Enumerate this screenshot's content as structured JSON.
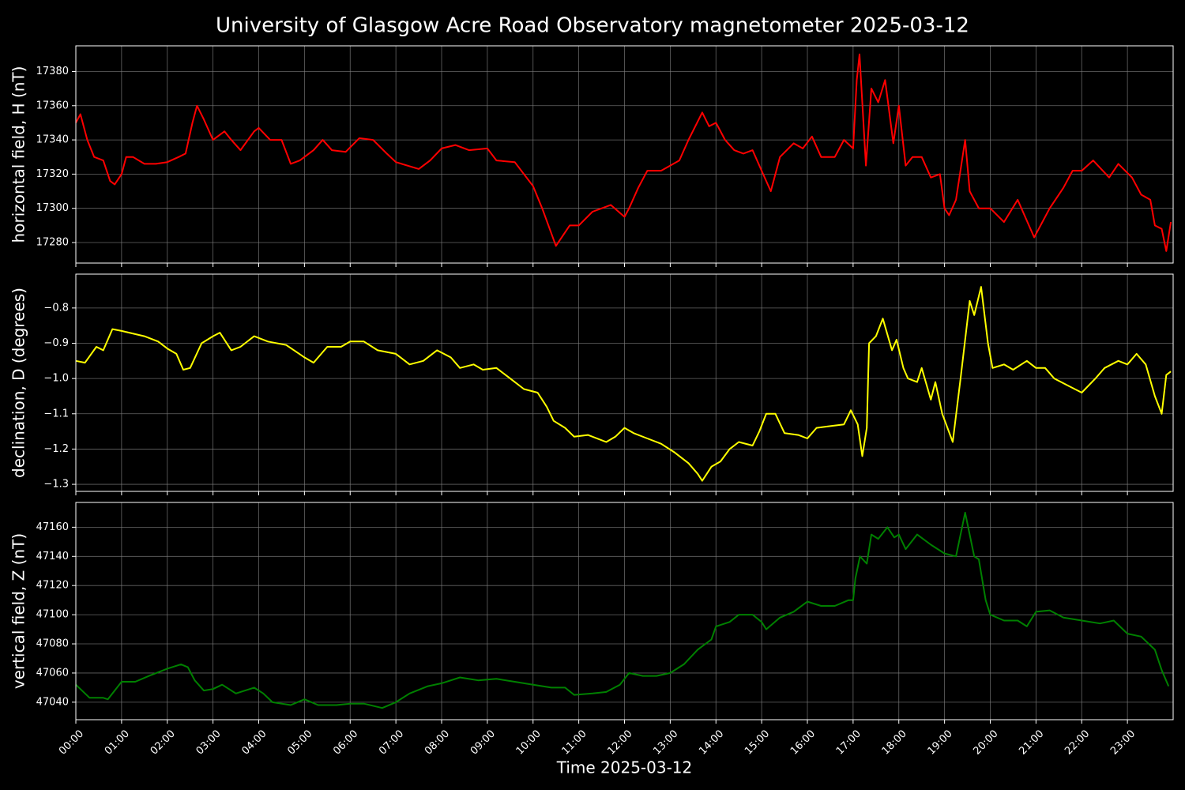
{
  "chart_data": [
    {
      "type": "line",
      "title": "University of Glasgow Acre Road Observatory magnetometer 2025-03-12",
      "ylabel": "horizontal field, H (nT)",
      "color": "#ff0000",
      "grid": true,
      "xlim": [
        0,
        24
      ],
      "xticks": [
        0,
        1,
        2,
        3,
        4,
        5,
        6,
        7,
        8,
        9,
        10,
        11,
        12,
        13,
        14,
        15,
        16,
        17,
        18,
        19,
        20,
        21,
        22,
        23
      ],
      "ylim": [
        17268,
        17395
      ],
      "yticks": [
        17280,
        17300,
        17320,
        17340,
        17360,
        17380
      ],
      "x": [
        0,
        0.1,
        0.25,
        0.4,
        0.6,
        0.75,
        0.85,
        1.0,
        1.1,
        1.25,
        1.5,
        1.75,
        2.0,
        2.25,
        2.4,
        2.55,
        2.65,
        2.8,
        3.0,
        3.25,
        3.4,
        3.6,
        3.9,
        4.0,
        4.25,
        4.5,
        4.7,
        4.9,
        5.2,
        5.4,
        5.6,
        5.9,
        6.2,
        6.5,
        6.8,
        7.0,
        7.5,
        7.75,
        8.0,
        8.3,
        8.6,
        9.0,
        9.2,
        9.6,
        10.0,
        10.2,
        10.5,
        10.8,
        11.0,
        11.3,
        11.7,
        12.0,
        12.1,
        12.3,
        12.5,
        12.8,
        13.0,
        13.2,
        13.4,
        13.7,
        13.85,
        14.0,
        14.2,
        14.4,
        14.6,
        14.8,
        15.0,
        15.2,
        15.4,
        15.7,
        15.9,
        16.1,
        16.3,
        16.6,
        16.8,
        17.0,
        17.08,
        17.14,
        17.28,
        17.4,
        17.55,
        17.7,
        17.88,
        18.0,
        18.15,
        18.3,
        18.5,
        18.7,
        18.9,
        19.0,
        19.1,
        19.25,
        19.45,
        19.55,
        19.75,
        20.0,
        20.3,
        20.6,
        20.96,
        21.3,
        21.6,
        21.8,
        22.0,
        22.25,
        22.6,
        22.8,
        23.1,
        23.3,
        23.5,
        23.6,
        23.75,
        23.85,
        23.95
      ],
      "values": [
        17350,
        17355,
        17340,
        17330,
        17328,
        17316,
        17314,
        17320,
        17330,
        17330,
        17326,
        17326,
        17327,
        17330,
        17332,
        17350,
        17360,
        17352,
        17340,
        17345,
        17340,
        17334,
        17345,
        17347,
        17340,
        17340,
        17326,
        17328,
        17334,
        17340,
        17334,
        17333,
        17341,
        17340,
        17332,
        17327,
        17323,
        17328,
        17335,
        17337,
        17334,
        17335,
        17328,
        17327,
        17313,
        17300,
        17278,
        17290,
        17290,
        17298,
        17302,
        17295,
        17300,
        17312,
        17322,
        17322,
        17325,
        17328,
        17340,
        17356,
        17348,
        17350,
        17340,
        17334,
        17332,
        17334,
        17322,
        17310,
        17330,
        17338,
        17335,
        17342,
        17330,
        17330,
        17340,
        17335,
        17375,
        17390,
        17325,
        17370,
        17362,
        17375,
        17338,
        17360,
        17325,
        17330,
        17330,
        17318,
        17320,
        17300,
        17296,
        17305,
        17340,
        17310,
        17300,
        17300,
        17292,
        17305,
        17283,
        17300,
        17312,
        17322,
        17322,
        17328,
        17318,
        17326,
        17318,
        17308,
        17305,
        17290,
        17288,
        17275,
        17292
      ]
    },
    {
      "type": "line",
      "ylabel": "declination, D (degrees)",
      "color": "#ffff00",
      "grid": true,
      "xlim": [
        0,
        24
      ],
      "xticks": [
        0,
        1,
        2,
        3,
        4,
        5,
        6,
        7,
        8,
        9,
        10,
        11,
        12,
        13,
        14,
        15,
        16,
        17,
        18,
        19,
        20,
        21,
        22,
        23
      ],
      "ylim": [
        -1.32,
        -0.704
      ],
      "yticks": [
        {
          "value": -1.3,
          "label": "−1.3"
        },
        {
          "value": -1.2,
          "label": "−1.2"
        },
        {
          "value": -1.1,
          "label": "−1.1"
        },
        {
          "value": -1.0,
          "label": "−1.0"
        },
        {
          "value": -0.9,
          "label": "−0.9"
        },
        {
          "value": -0.8,
          "label": "−0.8"
        }
      ],
      "x": [
        0,
        0.2,
        0.45,
        0.6,
        0.8,
        1.0,
        1.5,
        1.8,
        2.0,
        2.2,
        2.35,
        2.5,
        2.75,
        3.0,
        3.15,
        3.4,
        3.6,
        3.9,
        4.2,
        4.6,
        5.0,
        5.2,
        5.5,
        5.8,
        6.0,
        6.3,
        6.6,
        7.0,
        7.3,
        7.6,
        7.9,
        8.2,
        8.4,
        8.7,
        8.9,
        9.2,
        9.5,
        9.8,
        10.1,
        10.3,
        10.45,
        10.7,
        10.9,
        11.2,
        11.6,
        11.8,
        12.0,
        12.2,
        12.5,
        12.8,
        13.1,
        13.4,
        13.6,
        13.7,
        13.9,
        14.1,
        14.3,
        14.5,
        14.8,
        14.95,
        15.1,
        15.3,
        15.5,
        15.8,
        16.0,
        16.2,
        16.5,
        16.8,
        16.95,
        17.1,
        17.2,
        17.3,
        17.35,
        17.5,
        17.65,
        17.85,
        17.95,
        18.1,
        18.2,
        18.4,
        18.5,
        18.7,
        18.8,
        18.95,
        19.18,
        19.35,
        19.55,
        19.65,
        19.8,
        19.95,
        20.05,
        20.3,
        20.5,
        20.8,
        21.0,
        21.2,
        21.4,
        21.7,
        22.0,
        22.3,
        22.5,
        22.8,
        23.0,
        23.2,
        23.4,
        23.6,
        23.75,
        23.85,
        23.95
      ],
      "values": [
        -0.95,
        -0.955,
        -0.91,
        -0.92,
        -0.86,
        -0.865,
        -0.88,
        -0.895,
        -0.915,
        -0.93,
        -0.975,
        -0.97,
        -0.9,
        -0.88,
        -0.87,
        -0.92,
        -0.91,
        -0.88,
        -0.895,
        -0.905,
        -0.94,
        -0.955,
        -0.91,
        -0.91,
        -0.895,
        -0.895,
        -0.92,
        -0.93,
        -0.96,
        -0.95,
        -0.92,
        -0.94,
        -0.97,
        -0.96,
        -0.975,
        -0.97,
        -1.0,
        -1.03,
        -1.04,
        -1.08,
        -1.12,
        -1.14,
        -1.165,
        -1.16,
        -1.18,
        -1.165,
        -1.14,
        -1.155,
        -1.17,
        -1.185,
        -1.21,
        -1.24,
        -1.27,
        -1.29,
        -1.25,
        -1.235,
        -1.2,
        -1.18,
        -1.19,
        -1.15,
        -1.1,
        -1.1,
        -1.155,
        -1.16,
        -1.17,
        -1.14,
        -1.135,
        -1.13,
        -1.09,
        -1.13,
        -1.22,
        -1.14,
        -0.9,
        -0.88,
        -0.83,
        -0.92,
        -0.89,
        -0.97,
        -1.0,
        -1.01,
        -0.97,
        -1.06,
        -1.01,
        -1.1,
        -1.18,
        -1.0,
        -0.78,
        -0.82,
        -0.74,
        -0.9,
        -0.97,
        -0.96,
        -0.975,
        -0.95,
        -0.97,
        -0.97,
        -1.0,
        -1.02,
        -1.04,
        -1.0,
        -0.97,
        -0.95,
        -0.96,
        -0.93,
        -0.96,
        -1.05,
        -1.1,
        -0.99,
        -0.98
      ]
    },
    {
      "type": "line",
      "ylabel": "vertical field, Z (nT)",
      "xlabel": "Time 2025-03-12",
      "color": "#008000",
      "grid": true,
      "xlim": [
        0,
        24
      ],
      "xticks": [
        {
          "value": 0,
          "label": "00:00"
        },
        {
          "value": 1,
          "label": "01:00"
        },
        {
          "value": 2,
          "label": "02:00"
        },
        {
          "value": 3,
          "label": "03:00"
        },
        {
          "value": 4,
          "label": "04:00"
        },
        {
          "value": 5,
          "label": "05:00"
        },
        {
          "value": 6,
          "label": "06:00"
        },
        {
          "value": 7,
          "label": "07:00"
        },
        {
          "value": 8,
          "label": "08:00"
        },
        {
          "value": 9,
          "label": "09:00"
        },
        {
          "value": 10,
          "label": "10:00"
        },
        {
          "value": 11,
          "label": "11:00"
        },
        {
          "value": 12,
          "label": "12:00"
        },
        {
          "value": 13,
          "label": "13:00"
        },
        {
          "value": 14,
          "label": "14:00"
        },
        {
          "value": 15,
          "label": "15:00"
        },
        {
          "value": 16,
          "label": "16:00"
        },
        {
          "value": 17,
          "label": "17:00"
        },
        {
          "value": 18,
          "label": "18:00"
        },
        {
          "value": 19,
          "label": "19:00"
        },
        {
          "value": 20,
          "label": "20:00"
        },
        {
          "value": 21,
          "label": "21:00"
        },
        {
          "value": 22,
          "label": "22:00"
        },
        {
          "value": 23,
          "label": "23:00"
        }
      ],
      "ylim": [
        47028,
        47177
      ],
      "yticks": [
        47040,
        47060,
        47080,
        47100,
        47120,
        47140,
        47160
      ],
      "x": [
        0,
        0.3,
        0.6,
        0.7,
        1.0,
        1.3,
        1.6,
        2.0,
        2.3,
        2.45,
        2.6,
        2.8,
        3.0,
        3.2,
        3.5,
        3.9,
        4.1,
        4.3,
        4.7,
        5.0,
        5.3,
        5.7,
        6.0,
        6.3,
        6.7,
        7.0,
        7.3,
        7.7,
        8.0,
        8.4,
        8.8,
        9.2,
        9.6,
        10.0,
        10.4,
        10.7,
        10.9,
        11.3,
        11.6,
        11.9,
        12.1,
        12.4,
        12.7,
        13.0,
        13.3,
        13.6,
        13.9,
        14.0,
        14.3,
        14.5,
        14.8,
        15.0,
        15.1,
        15.4,
        15.7,
        16.0,
        16.3,
        16.6,
        16.9,
        17.0,
        17.05,
        17.15,
        17.3,
        17.4,
        17.55,
        17.75,
        17.9,
        18.0,
        18.15,
        18.4,
        18.7,
        19.0,
        19.25,
        19.45,
        19.65,
        19.75,
        19.9,
        20.0,
        20.3,
        20.6,
        20.8,
        21.0,
        21.3,
        21.6,
        22.0,
        22.4,
        22.7,
        23.0,
        23.3,
        23.6,
        23.75,
        23.9
      ],
      "values": [
        47052,
        47043,
        47043,
        47042,
        47054,
        47054,
        47058,
        47063,
        47066,
        47064,
        47055,
        47048,
        47049,
        47052,
        47046,
        47050,
        47046,
        47040,
        47038,
        47042,
        47038,
        47038,
        47039,
        47039,
        47036,
        47040,
        47046,
        47051,
        47053,
        47057,
        47055,
        47056,
        47054,
        47052,
        47050,
        47050,
        47045,
        47046,
        47047,
        47052,
        47060,
        47058,
        47058,
        47060,
        47066,
        47076,
        47083,
        47092,
        47095,
        47100,
        47100,
        47095,
        47090,
        47098,
        47102,
        47109,
        47106,
        47106,
        47110,
        47110,
        47125,
        47140,
        47135,
        47155,
        47152,
        47160,
        47153,
        47155,
        47145,
        47155,
        47148,
        47142,
        47140,
        47170,
        47140,
        47138,
        47110,
        47100,
        47096,
        47096,
        47092,
        47102,
        47103,
        47098,
        47096,
        47094,
        47096,
        47087,
        47085,
        47076,
        47062,
        47051
      ]
    }
  ]
}
